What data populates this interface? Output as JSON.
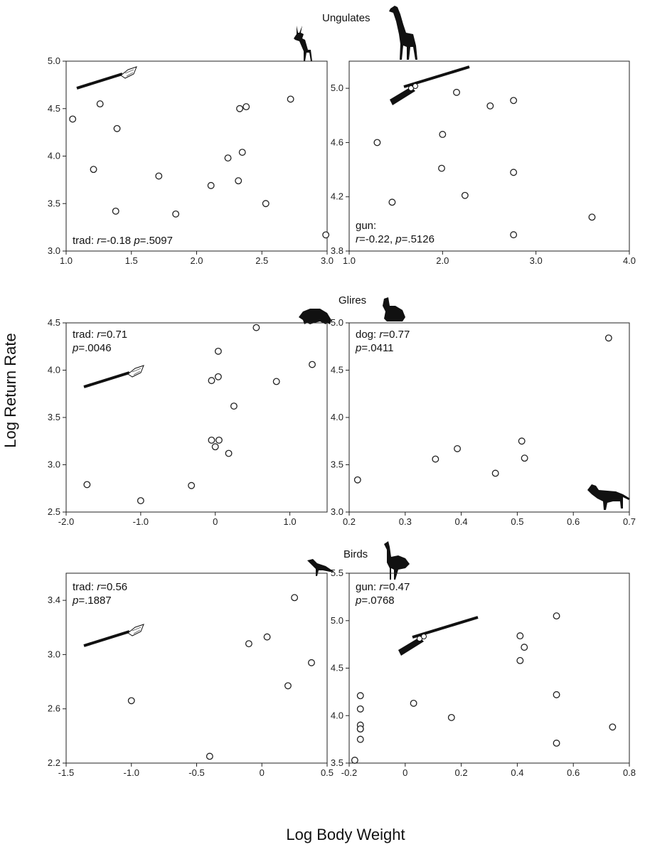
{
  "y_axis_label": "Log Return Rate",
  "x_axis_label": "Log Body Weight",
  "groups": [
    "Ungulates",
    "Glires",
    "Birds"
  ],
  "chart_data": [
    {
      "type": "scatter",
      "group": "Ungulates",
      "tool": "trad",
      "tool_icon": "spear-icon",
      "stat_label": "trad: ",
      "r": "-0.18",
      "p": ".5097",
      "xlim": [
        1.0,
        3.0
      ],
      "ylim": [
        3.0,
        5.0
      ],
      "xticks": [
        "1.0",
        "1.5",
        "2.0",
        "2.5",
        "3.0"
      ],
      "yticks": [
        "3.0",
        "3.5",
        "4.0",
        "4.5",
        "5.0"
      ],
      "x": [
        1.05,
        1.21,
        1.26,
        1.38,
        1.39,
        1.71,
        1.84,
        2.11,
        2.24,
        2.32,
        2.33,
        2.35,
        2.38,
        2.53,
        2.72,
        2.99
      ],
      "y": [
        4.39,
        3.86,
        4.55,
        3.42,
        4.29,
        3.79,
        3.39,
        3.69,
        3.98,
        3.74,
        4.5,
        4.04,
        4.52,
        3.5,
        4.6,
        3.17
      ]
    },
    {
      "type": "scatter",
      "group": "Ungulates",
      "tool": "gun",
      "tool_icon": "rifle-icon",
      "stat_label": "gun:",
      "r": "-0.22",
      "p": ".5126",
      "xlim": [
        1.0,
        4.0
      ],
      "ylim": [
        3.8,
        5.2
      ],
      "xticks": [
        "1.0",
        "2.0",
        "3.0",
        "4.0"
      ],
      "yticks": [
        "3.8",
        "4.2",
        "4.6",
        "5.0"
      ],
      "x": [
        1.3,
        1.46,
        1.99,
        2.0,
        2.15,
        2.24,
        2.51,
        2.76,
        2.76,
        2.76,
        3.6
      ],
      "y": [
        4.6,
        4.16,
        4.41,
        4.66,
        4.97,
        4.21,
        4.87,
        4.91,
        4.38,
        3.92,
        4.05
      ]
    },
    {
      "type": "scatter",
      "group": "Glires",
      "tool": "trad",
      "tool_icon": "spear-icon",
      "stat_label": "trad: ",
      "r": "0.71",
      "p": ".0046",
      "xlim": [
        -2.0,
        1.5
      ],
      "ylim": [
        2.5,
        4.5
      ],
      "xticks": [
        "-2.0",
        "-1.0",
        "0",
        "1.0"
      ],
      "yticks": [
        "2.5",
        "3.0",
        "3.5",
        "4.0",
        "4.5"
      ],
      "x": [
        -1.72,
        -1.0,
        -0.32,
        -0.05,
        -0.05,
        0.0,
        0.04,
        0.04,
        0.05,
        0.18,
        0.25,
        0.55,
        0.82,
        1.3
      ],
      "y": [
        2.79,
        2.62,
        2.78,
        3.26,
        3.89,
        3.19,
        4.2,
        3.93,
        3.26,
        3.12,
        3.62,
        4.45,
        3.88,
        4.06
      ]
    },
    {
      "type": "scatter",
      "group": "Glires",
      "tool": "dog",
      "tool_icon": "dog-icon",
      "stat_label": "dog: ",
      "r": "0.77",
      "p": ".0411",
      "xlim": [
        0.2,
        0.7
      ],
      "ylim": [
        3.0,
        5.0
      ],
      "xticks": [
        "0.2",
        "0.3",
        "0.4",
        "0.5",
        "0.6",
        "0.7"
      ],
      "yticks": [
        "3.0",
        "3.5",
        "4.0",
        "4.5",
        "5.0"
      ],
      "x": [
        0.215,
        0.354,
        0.393,
        0.461,
        0.508,
        0.513,
        0.663
      ],
      "y": [
        3.34,
        3.56,
        3.67,
        3.41,
        3.75,
        3.57,
        4.84
      ]
    },
    {
      "type": "scatter",
      "group": "Birds",
      "tool": "trad",
      "tool_icon": "spear-icon",
      "stat_label": "trad: ",
      "r": "0.56",
      "p": ".1887",
      "xlim": [
        -1.5,
        0.5
      ],
      "ylim": [
        2.2,
        3.6
      ],
      "xticks": [
        "-1.5",
        "-1.0",
        "-0.5",
        "0",
        "0.5"
      ],
      "yticks": [
        "2.2",
        "2.6",
        "3.0",
        "3.4"
      ],
      "x": [
        -1.0,
        -0.4,
        -0.1,
        0.04,
        0.2,
        0.25,
        0.38
      ],
      "y": [
        2.66,
        2.25,
        3.08,
        3.13,
        2.77,
        3.42,
        2.94
      ]
    },
    {
      "type": "scatter",
      "group": "Birds",
      "tool": "gun",
      "tool_icon": "rifle-icon",
      "stat_label": "gun: ",
      "r": "0.47",
      "p": ".0768",
      "xlim": [
        -0.2,
        0.8
      ],
      "ylim": [
        3.5,
        5.5
      ],
      "xticks": [
        "-0.2",
        "0",
        "0.2",
        "0.4",
        "0.6",
        "0.8"
      ],
      "yticks": [
        "3.5",
        "4.0",
        "4.5",
        "5.0",
        "5.5"
      ],
      "x": [
        -0.18,
        -0.16,
        -0.16,
        -0.16,
        -0.16,
        -0.16,
        -0.16,
        0.03,
        0.165,
        0.41,
        0.41,
        0.425,
        0.54,
        0.54,
        0.54,
        0.74
      ],
      "y": [
        3.53,
        3.75,
        3.86,
        3.9,
        4.07,
        4.21,
        3.86,
        4.13,
        3.98,
        4.58,
        4.84,
        4.72,
        5.05,
        4.22,
        3.71,
        3.88
      ]
    }
  ]
}
